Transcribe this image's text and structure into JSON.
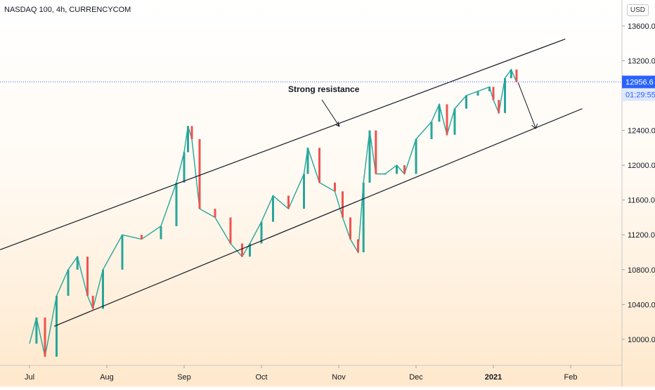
{
  "header": {
    "symbol_title": "NASDAQ 100, 4h, CURRENCYCOM",
    "currency_label": "USD"
  },
  "price_tags": {
    "last_price": "12956.6",
    "countdown": "01:29:55"
  },
  "colors": {
    "up": "#26a69a",
    "down": "#ef5350",
    "price_tag_bg": "#2962ff",
    "trendline": "#131722"
  },
  "chart_data": {
    "type": "line",
    "title": "",
    "xlabel": "",
    "ylabel": "",
    "x_ticks": [
      "Jul",
      "Aug",
      "Sep",
      "Oct",
      "Nov",
      "Dec",
      "2021",
      "Feb"
    ],
    "y_ticks": [
      10000,
      10400,
      10800,
      11200,
      11600,
      12000,
      12400,
      13200,
      13600
    ],
    "ylim": [
      9700,
      13850
    ],
    "grid": false,
    "series": [
      {
        "values": [
          [
            0.0,
            9950
          ],
          [
            0.09,
            10250
          ],
          [
            0.2,
            9800
          ],
          [
            0.35,
            10500
          ],
          [
            0.5,
            10800
          ],
          [
            0.62,
            10950
          ],
          [
            0.75,
            10500
          ],
          [
            0.82,
            10350
          ],
          [
            0.95,
            10800
          ],
          [
            1.2,
            11200
          ],
          [
            1.45,
            11150
          ],
          [
            1.7,
            11300
          ],
          [
            1.9,
            11800
          ],
          [
            2.0,
            12150
          ],
          [
            2.05,
            12450
          ],
          [
            2.1,
            12300
          ],
          [
            2.2,
            11500
          ],
          [
            2.4,
            11400
          ],
          [
            2.6,
            11100
          ],
          [
            2.75,
            10950
          ],
          [
            2.85,
            11100
          ],
          [
            3.0,
            11350
          ],
          [
            3.15,
            11650
          ],
          [
            3.35,
            11500
          ],
          [
            3.55,
            11900
          ],
          [
            3.6,
            12200
          ],
          [
            3.75,
            11800
          ],
          [
            3.95,
            11700
          ],
          [
            4.05,
            11400
          ],
          [
            4.15,
            11150
          ],
          [
            4.25,
            11000
          ],
          [
            4.32,
            11800
          ],
          [
            4.4,
            12400
          ],
          [
            4.48,
            11900
          ],
          [
            4.6,
            11900
          ],
          [
            4.75,
            12000
          ],
          [
            4.85,
            11900
          ],
          [
            5.0,
            12300
          ],
          [
            5.2,
            12500
          ],
          [
            5.3,
            12700
          ],
          [
            5.4,
            12350
          ],
          [
            5.5,
            12650
          ],
          [
            5.65,
            12800
          ],
          [
            5.8,
            12850
          ],
          [
            5.95,
            12900
          ],
          [
            6.0,
            12750
          ],
          [
            6.07,
            12600
          ],
          [
            6.15,
            13000
          ],
          [
            6.23,
            13100
          ],
          [
            6.3,
            12956.6
          ]
        ]
      }
    ],
    "annotations": {
      "text": "Strong resistance"
    }
  }
}
